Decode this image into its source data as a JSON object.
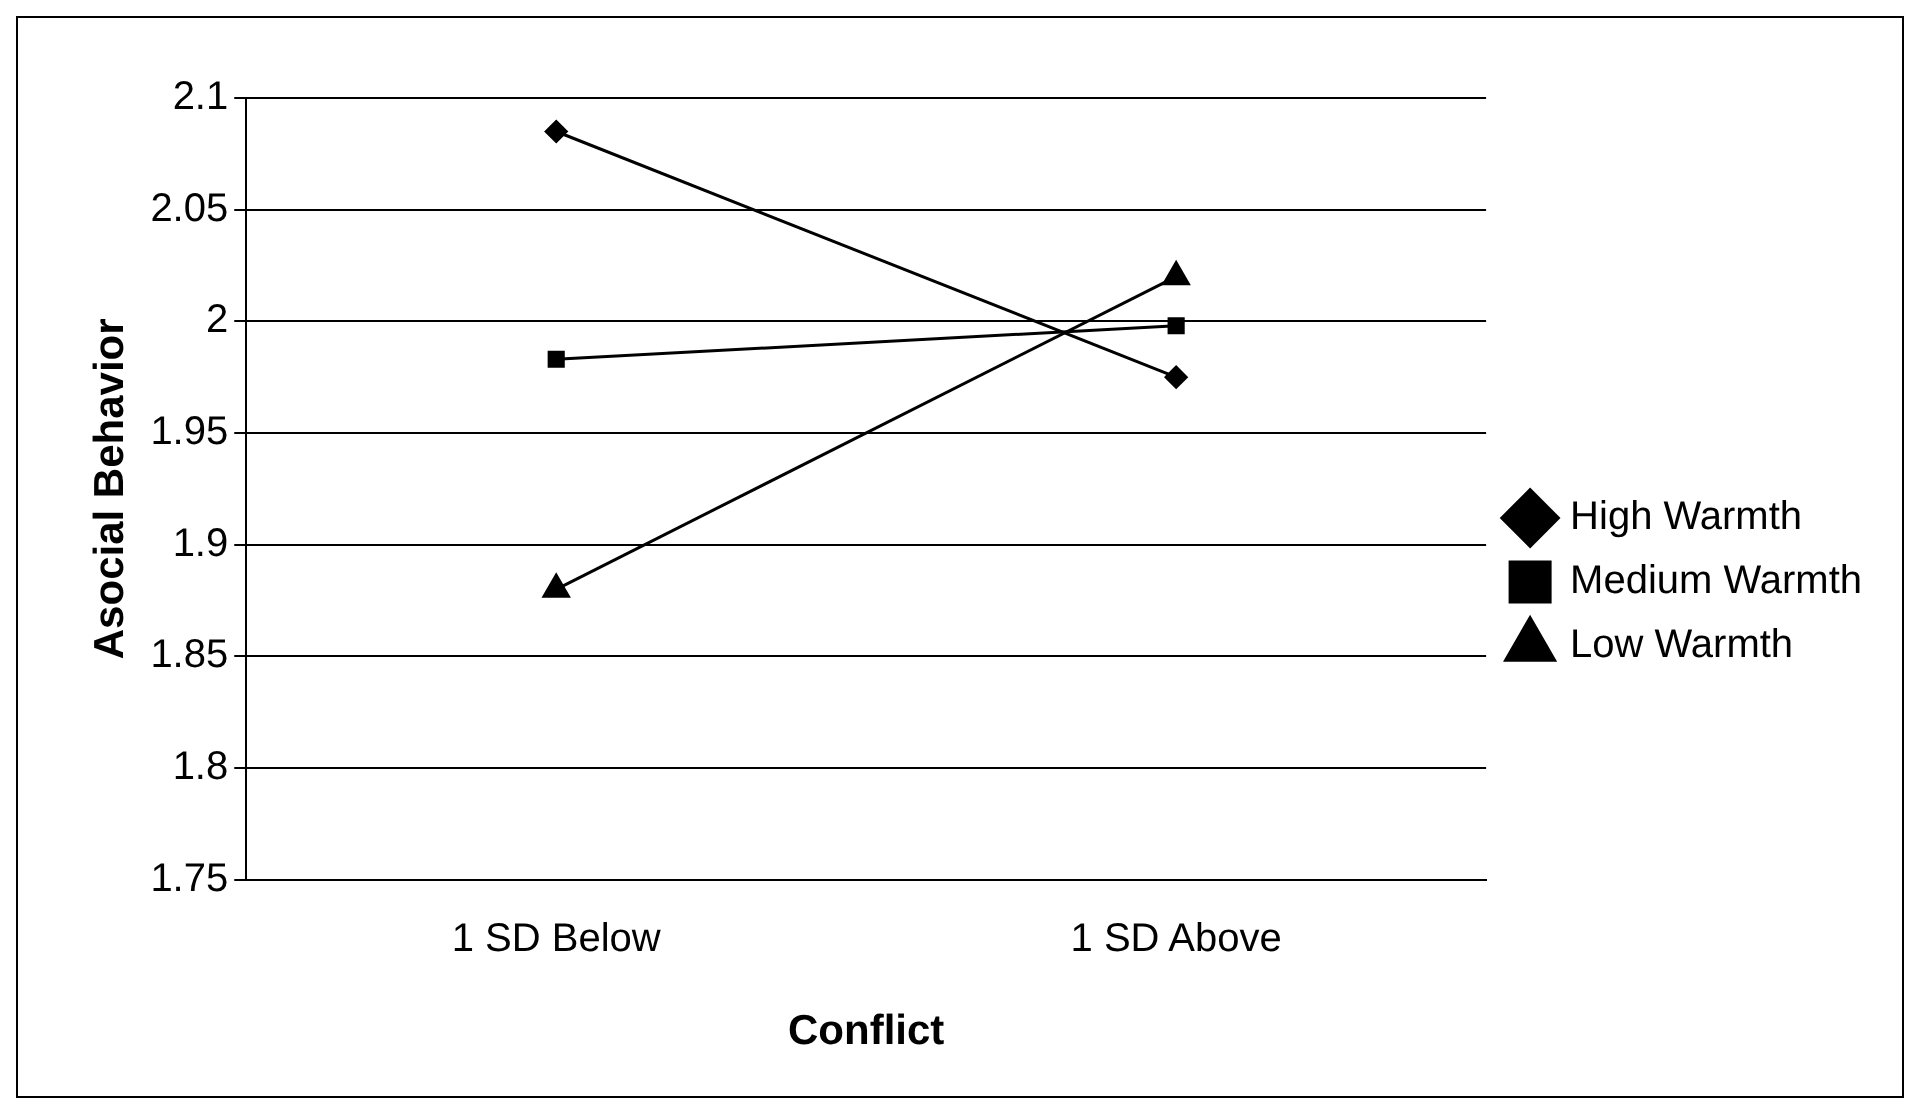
{
  "chart_data": {
    "type": "line",
    "xlabel": "Conflict",
    "ylabel": "Asocial Behavior",
    "categories": [
      "1 SD Below",
      "1 SD Above"
    ],
    "series": [
      {
        "name": "High Warmth",
        "color": "#000000",
        "values": [
          2.085,
          1.975
        ],
        "marker": "diamond"
      },
      {
        "name": "Medium Warmth",
        "color": "#000000",
        "values": [
          1.983,
          1.998
        ],
        "marker": "square"
      },
      {
        "name": "Low Warmth",
        "color": "#000000",
        "values": [
          1.88,
          2.02
        ],
        "marker": "triangle"
      }
    ],
    "ylim": [
      1.75,
      2.1
    ],
    "yticks": [
      1.75,
      1.8,
      1.85,
      1.9,
      1.95,
      2,
      2.05,
      2.1
    ],
    "grid": "y",
    "legend": "right",
    "line_style": "solid"
  }
}
